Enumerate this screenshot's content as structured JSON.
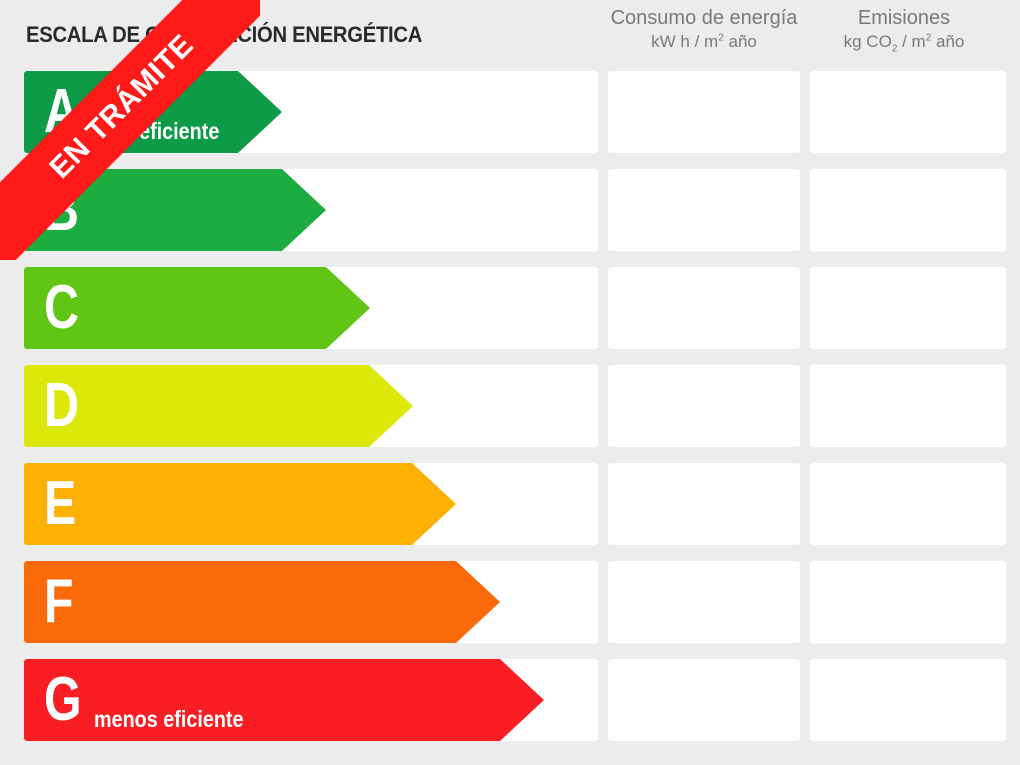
{
  "header": {
    "title": "ESCALA DE CALIFICACIÓN ENERGÉTICA",
    "col1_title": "Consumo de energía",
    "col1_unit_a": "kW h / m",
    "col1_unit_sup": "2",
    "col1_unit_b": " año",
    "col2_title": "Emisiones",
    "col2_unit_a": "kg CO",
    "col2_unit_sub": "2",
    "col2_unit_b": " / m",
    "col2_unit_sup": "2",
    "col2_unit_c": " año"
  },
  "ratings": [
    {
      "letter": "A",
      "label": "más eficiente",
      "color": "#0e9b48"
    },
    {
      "letter": "B",
      "label": "",
      "color": "#1dac3f"
    },
    {
      "letter": "C",
      "label": "",
      "color": "#60c515"
    },
    {
      "letter": "D",
      "label": "",
      "color": "#dce80a"
    },
    {
      "letter": "E",
      "label": "",
      "color": "#fbb002"
    },
    {
      "letter": "F",
      "label": "",
      "color": "#fb6a08"
    },
    {
      "letter": "G",
      "label": "menos eficiente",
      "color": "#f81e24"
    }
  ],
  "banner": {
    "text": "EN TRÁMITE",
    "color": "#ff1a1a"
  }
}
